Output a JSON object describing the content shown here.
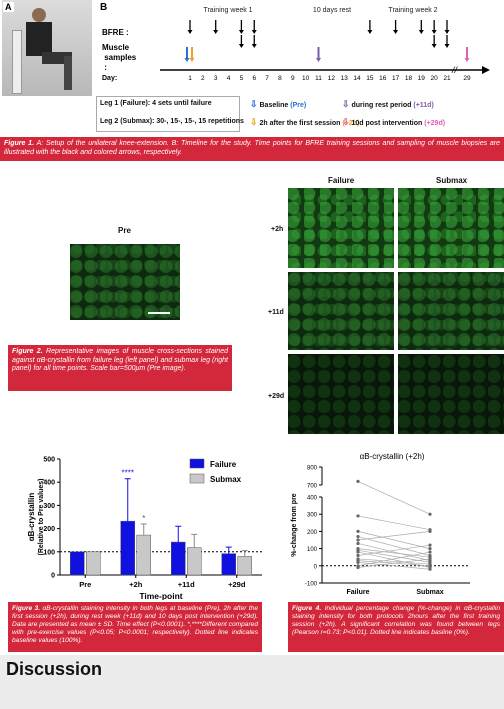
{
  "figure1": {
    "panel_a": "A",
    "panel_b": "B",
    "phases": [
      "Training week 1",
      "10 days rest",
      "Training week 2"
    ],
    "rows": [
      "BFRE :",
      "Muscle samples :",
      "Day:"
    ],
    "days": [
      "1",
      "2",
      "3",
      "4",
      "5",
      "6",
      "7",
      "8",
      "9",
      "10",
      "11",
      "12",
      "13",
      "14",
      "15",
      "16",
      "17",
      "18",
      "19",
      "20",
      "21",
      "29"
    ],
    "legs": [
      "Leg 1 (Failure): 4 sets until failure",
      "Leg 2 (Submax): 30-, 15-, 15-, 15 repetitions"
    ],
    "legend": [
      {
        "text": "Baseline",
        "tag": "(Pre)",
        "color": "#2a6fd6"
      },
      {
        "text": "2h after the first session",
        "tag": "(+2h)",
        "color": "#f0a020"
      },
      {
        "text": "during rest period",
        "tag": "(+11d)",
        "color": "#7a5fa8"
      },
      {
        "text": "10d post intervention",
        "tag": "(+29d)",
        "color": "#e060b0"
      }
    ],
    "caption": {
      "label": "Figure 1.",
      "text": "A: Setup of the unilateral knee-extension. B: Timeline for the study. Time points for BFRE training sessions and sampling of muscle biopsies are illustrated with the black and colored arrows, respectively."
    }
  },
  "figure2": {
    "pre_label": "Pre",
    "columns": [
      "Failure",
      "Submax"
    ],
    "rows": [
      "+2h",
      "+11d",
      "+29d"
    ],
    "caption": {
      "label": "Figure 2.",
      "text": "Representative images of muscle cross-sections stained against αB-crystallin from failure leg (left panel) and submax leg (right panel) for all time points. Scale bar=500μm (Pre image)."
    }
  },
  "chart_data": [
    {
      "type": "bar",
      "ylabel": "αB-crystallin",
      "ylabel_sub": "(Relative to Pre values)",
      "xlabel": "Time-point",
      "categories": [
        "Pre",
        "+2h",
        "+11d",
        "+29d"
      ],
      "series": [
        {
          "name": "Failure",
          "color": "#1010e0",
          "values": [
            100,
            232,
            142,
            92
          ],
          "errors": [
            0,
            183,
            68,
            28
          ],
          "significance": [
            null,
            "****",
            null,
            null
          ]
        },
        {
          "name": "Submax",
          "color": "#c8c8c8",
          "values": [
            100,
            172,
            118,
            80
          ],
          "errors": [
            0,
            48,
            57,
            25
          ],
          "significance": [
            null,
            "*",
            null,
            null
          ]
        }
      ],
      "ylim": [
        0,
        500
      ],
      "yticks": [
        0,
        100,
        200,
        300,
        400,
        500
      ],
      "reference": 100
    },
    {
      "type": "line",
      "title": "αB-crystallin (+2h)",
      "ylabel": "%-change from pre",
      "categories": [
        "Failure",
        "Submax"
      ],
      "color": "#666666",
      "series": [
        {
          "values": [
            720,
            300
          ]
        },
        {
          "values": [
            290,
            210
          ]
        },
        {
          "values": [
            200,
            100
          ]
        },
        {
          "values": [
            170,
            60
          ]
        },
        {
          "values": [
            150,
            200
          ]
        },
        {
          "values": [
            130,
            30
          ]
        },
        {
          "values": [
            100,
            50
          ]
        },
        {
          "values": [
            90,
            20
          ]
        },
        {
          "values": [
            80,
            -10
          ]
        },
        {
          "values": [
            60,
            120
          ]
        },
        {
          "values": [
            40,
            10
          ]
        },
        {
          "values": [
            30,
            0
          ]
        },
        {
          "values": [
            20,
            -20
          ]
        },
        {
          "values": [
            0,
            80
          ]
        },
        {
          "values": [
            -10,
            40
          ]
        }
      ],
      "ylim": [
        -100,
        800
      ],
      "axis_break": [
        400,
        700
      ],
      "yticks": [
        -100,
        0,
        100,
        200,
        300,
        400,
        700,
        800
      ],
      "reference": 0
    }
  ],
  "figure3_caption": {
    "label": "Figure 3.",
    "text": "αB-crystallin staining intensity in both legs at baseline (Pre), 2h after the first session (+2h), during rest week (+11d) and 10 days post intervention (+29d). Data are presented as mean ± SD. Time effect (P<0.0001). *,****Different compared with pre-exercise values (P<0.05; P<0.0001; respectively). Dotted line indicates baseline values (100%)."
  },
  "figure4_caption": {
    "label": "Figure 4.",
    "text": "Individual percentage change (%-change) in αB-crystallin staining intensity for both protocols 2hours after the first training session (+2h). A significant correlation was found between legs (Pearson r=0.73; P<0.01). Dotted line indicates basline (0%)."
  },
  "section_heading": "Discussion"
}
